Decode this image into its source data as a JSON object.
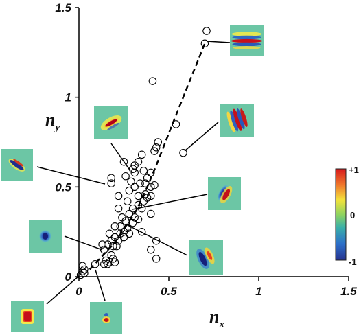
{
  "chart_data": {
    "type": "scatter",
    "title": "",
    "xlabel": "n",
    "xlabel_subscript": "x",
    "ylabel": "n",
    "ylabel_subscript": "y",
    "xlim": [
      0,
      1.5
    ],
    "ylim": [
      0,
      1.5
    ],
    "x_ticks": [
      {
        "v": 0,
        "label": "0"
      },
      {
        "v": 0.5,
        "label": "0.5"
      },
      {
        "v": 1,
        "label": "1"
      },
      {
        "v": 1.5,
        "label": "1.5"
      }
    ],
    "y_ticks": [
      {
        "v": 0,
        "label": "0"
      },
      {
        "v": 0.5,
        "label": "0.5"
      },
      {
        "v": 1,
        "label": "1"
      },
      {
        "v": 1.5,
        "label": "1.5"
      }
    ],
    "grid": false,
    "marker": "open-circle",
    "points": [
      [
        0.01,
        0.01
      ],
      [
        0.02,
        0.03
      ],
      [
        0.03,
        0.02
      ],
      [
        0.02,
        0.06
      ],
      [
        0.03,
        0.04
      ],
      [
        0.09,
        0.07
      ],
      [
        0.14,
        0.07
      ],
      [
        0.15,
        0.09
      ],
      [
        0.16,
        0.07
      ],
      [
        0.17,
        0.08
      ],
      [
        0.19,
        0.1
      ],
      [
        0.2,
        0.08
      ],
      [
        0.18,
        0.12
      ],
      [
        0.14,
        0.15
      ],
      [
        0.13,
        0.18
      ],
      [
        0.16,
        0.18
      ],
      [
        0.19,
        0.17
      ],
      [
        0.21,
        0.17
      ],
      [
        0.18,
        0.2
      ],
      [
        0.22,
        0.2
      ],
      [
        0.2,
        0.22
      ],
      [
        0.23,
        0.24
      ],
      [
        0.25,
        0.22
      ],
      [
        0.23,
        0.28
      ],
      [
        0.27,
        0.27
      ],
      [
        0.25,
        0.25
      ],
      [
        0.28,
        0.24
      ],
      [
        0.26,
        0.31
      ],
      [
        0.3,
        0.3
      ],
      [
        0.28,
        0.35
      ],
      [
        0.31,
        0.33
      ],
      [
        0.33,
        0.32
      ],
      [
        0.3,
        0.38
      ],
      [
        0.33,
        0.4
      ],
      [
        0.35,
        0.38
      ],
      [
        0.36,
        0.42
      ],
      [
        0.33,
        0.45
      ],
      [
        0.38,
        0.44
      ],
      [
        0.4,
        0.45
      ],
      [
        0.37,
        0.46
      ],
      [
        0.28,
        0.48
      ],
      [
        0.31,
        0.5
      ],
      [
        0.34,
        0.52
      ],
      [
        0.37,
        0.52
      ],
      [
        0.4,
        0.5
      ],
      [
        0.42,
        0.51
      ],
      [
        0.38,
        0.55
      ],
      [
        0.4,
        0.58
      ],
      [
        0.36,
        0.59
      ],
      [
        0.31,
        0.58
      ],
      [
        0.3,
        0.6
      ],
      [
        0.31,
        0.62
      ],
      [
        0.25,
        0.64
      ],
      [
        0.33,
        0.64
      ],
      [
        0.35,
        0.68
      ],
      [
        0.43,
        0.72
      ],
      [
        0.44,
        0.75
      ],
      [
        0.42,
        0.7
      ],
      [
        0.26,
        0.56
      ],
      [
        0.29,
        0.53
      ],
      [
        0.27,
        0.42
      ],
      [
        0.22,
        0.38
      ],
      [
        0.24,
        0.33
      ],
      [
        0.2,
        0.28
      ],
      [
        0.17,
        0.24
      ],
      [
        0.22,
        0.45
      ],
      [
        0.35,
        0.25
      ],
      [
        0.4,
        0.35
      ],
      [
        0.43,
        0.2
      ],
      [
        0.43,
        0.1
      ],
      [
        0.4,
        0.15
      ],
      [
        0.18,
        0.52
      ],
      [
        0.18,
        0.55
      ],
      [
        0.41,
        1.09
      ],
      [
        0.54,
        0.85
      ],
      [
        0.58,
        0.69
      ],
      [
        0.7,
        1.3
      ],
      [
        0.71,
        1.37
      ]
    ],
    "fit_line": {
      "style": "dashed",
      "x": [
        0.06,
        0.2,
        0.32,
        0.38,
        0.43,
        0.52,
        0.7
      ],
      "y": [
        0.04,
        0.19,
        0.37,
        0.5,
        0.62,
        0.85,
        1.3
      ]
    },
    "insets": [
      {
        "x": 0.71,
        "y": 1.3,
        "kind": "horizontal-stripes"
      },
      {
        "x": 0.58,
        "y": 0.69,
        "kind": "multi-lobe-tilted"
      },
      {
        "x": 0.31,
        "y": 0.58,
        "kind": "diagonal-elongated"
      },
      {
        "x": 0.18,
        "y": 0.52,
        "kind": "diagonal-elongated"
      },
      {
        "x": 0.29,
        "y": 0.4,
        "kind": "two-lobe-tilted"
      },
      {
        "x": 0.24,
        "y": 0.27,
        "kind": "two-lobe-vertical"
      },
      {
        "x": 0.21,
        "y": 0.17,
        "kind": "blob"
      },
      {
        "x": 0.02,
        "y": 0.03,
        "kind": "square-blob"
      },
      {
        "x": 0.09,
        "y": 0.07,
        "kind": "small-bipolar"
      }
    ],
    "colorbar": {
      "labels": [
        "+1",
        "0",
        "-1"
      ],
      "colors": [
        "#d7191c",
        "#f07a2c",
        "#f3e23a",
        "#8fd35f",
        "#3ab0a8",
        "#2c6fc9",
        "#27338f"
      ]
    }
  }
}
